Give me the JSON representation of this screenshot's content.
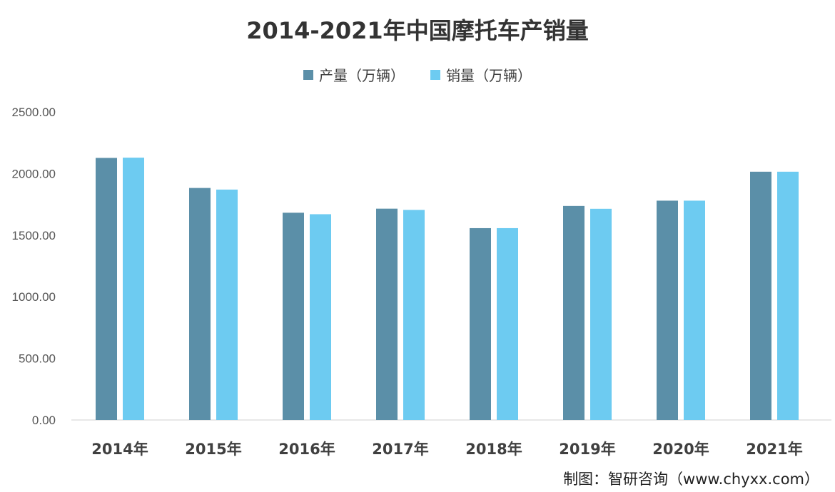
{
  "chart_data": {
    "type": "bar",
    "title": "2014-2021年中国摩托车产销量",
    "categories": [
      "2014年",
      "2015年",
      "2016年",
      "2017年",
      "2018年",
      "2019年",
      "2020年",
      "2021年"
    ],
    "series": [
      {
        "name": "产量（万辆）",
        "color": "#5b8fa8",
        "values": [
          2127,
          1883,
          1682,
          1715,
          1557,
          1737,
          1780,
          2015
        ]
      },
      {
        "name": "销量（万辆）",
        "color": "#6dcbf1",
        "values": [
          2129,
          1870,
          1670,
          1705,
          1557,
          1714,
          1780,
          2015
        ]
      }
    ],
    "yticks": [
      "0.00",
      "500.00",
      "1000.00",
      "1500.00",
      "2000.00",
      "2500.00"
    ],
    "ylim": [
      0,
      2500
    ],
    "xlabel": "",
    "ylabel": "",
    "grid": false,
    "legend": "top-center"
  },
  "source": "制图：智研咨询（www.chyxx.com）",
  "watermark": "智研咨询"
}
